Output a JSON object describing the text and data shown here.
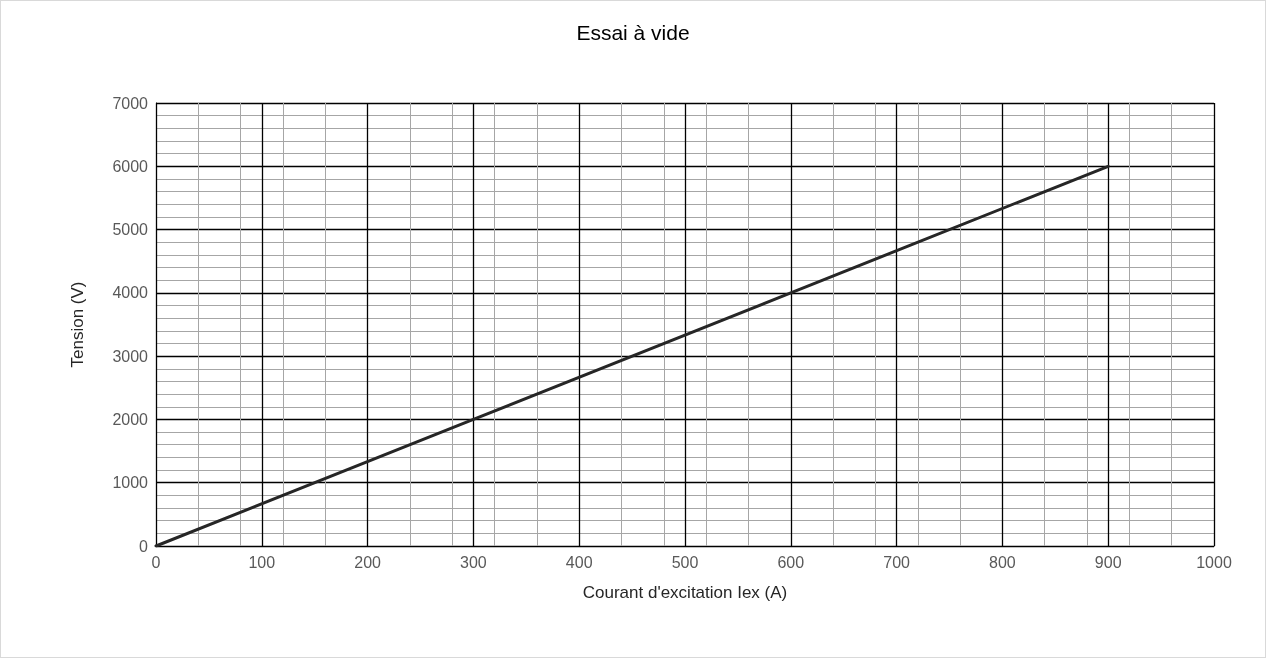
{
  "chart_data": {
    "type": "line",
    "title": "Essai à vide",
    "xlabel": "Courant d'excitation Iex (A)",
    "ylabel": "Tension (V)",
    "x": [
      0,
      300,
      600,
      900
    ],
    "series": [
      {
        "color": "#262626",
        "values": [
          0,
          2000,
          4000,
          6000
        ]
      }
    ],
    "xlim": [
      0,
      1000
    ],
    "xticks": [
      0,
      100,
      200,
      300,
      400,
      500,
      600,
      700,
      800,
      900,
      1000
    ],
    "ylim": [
      0,
      7000
    ],
    "yticks": [
      0,
      1000,
      2000,
      3000,
      4000,
      5000,
      6000,
      7000
    ],
    "grid": true,
    "marker": "none",
    "line_style": "solid"
  }
}
